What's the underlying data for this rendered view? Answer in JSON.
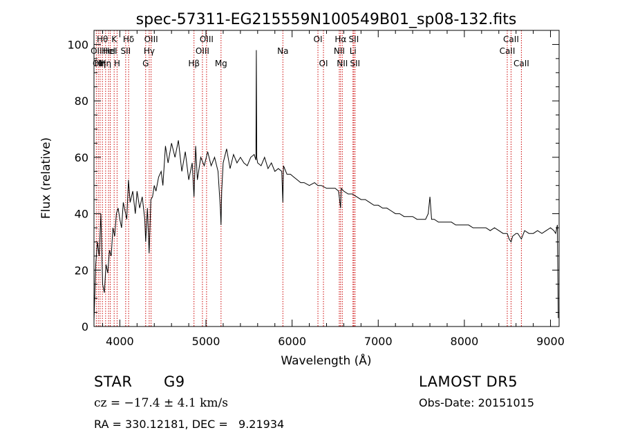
{
  "chart_data": {
    "type": "line",
    "title": "spec-57311-EG215559N100549B01_sp08-132.fits",
    "xlabel": "Wavelength (Å)",
    "ylabel": "Flux (relative)",
    "xlim": [
      3700,
      9100
    ],
    "ylim": [
      0,
      105
    ],
    "xticks": [
      {
        "v": 4000,
        "t": "4000"
      },
      {
        "v": 5000,
        "t": "5000"
      },
      {
        "v": 6000,
        "t": "6000"
      },
      {
        "v": 7000,
        "t": "7000"
      },
      {
        "v": 8000,
        "t": "8000"
      },
      {
        "v": 9000,
        "t": "9000"
      }
    ],
    "yticks": [
      {
        "v": 0,
        "t": "0"
      },
      {
        "v": 20,
        "t": "20"
      },
      {
        "v": 40,
        "t": "40"
      },
      {
        "v": 60,
        "t": "60"
      },
      {
        "v": 80,
        "t": "80"
      },
      {
        "v": 100,
        "t": "100"
      }
    ],
    "series": [
      {
        "color": "#000000",
        "x": [
          3700,
          3720,
          3740,
          3760,
          3780,
          3800,
          3820,
          3840,
          3860,
          3880,
          3900,
          3920,
          3940,
          3960,
          3980,
          4000,
          4020,
          4040,
          4060,
          4080,
          4100,
          4120,
          4150,
          4180,
          4200,
          4230,
          4260,
          4290,
          4300,
          4320,
          4340,
          4360,
          4380,
          4400,
          4420,
          4450,
          4480,
          4500,
          4530,
          4560,
          4600,
          4640,
          4680,
          4720,
          4760,
          4800,
          4840,
          4861,
          4880,
          4900,
          4940,
          4980,
          5020,
          5060,
          5100,
          5140,
          5167,
          5175,
          5183,
          5200,
          5240,
          5280,
          5320,
          5360,
          5400,
          5440,
          5480,
          5520,
          5560,
          5580,
          5585,
          5590,
          5600,
          5640,
          5680,
          5720,
          5760,
          5800,
          5840,
          5880,
          5893,
          5900,
          5940,
          5980,
          6020,
          6060,
          6100,
          6140,
          6200,
          6260,
          6300,
          6340,
          6400,
          6450,
          6500,
          6540,
          6563,
          6570,
          6600,
          6650,
          6700,
          6750,
          6800,
          6850,
          6900,
          6950,
          7000,
          7050,
          7100,
          7150,
          7200,
          7250,
          7300,
          7350,
          7400,
          7450,
          7500,
          7550,
          7580,
          7600,
          7620,
          7650,
          7700,
          7750,
          7800,
          7850,
          7900,
          7950,
          8000,
          8050,
          8100,
          8150,
          8200,
          8250,
          8300,
          8350,
          8400,
          8450,
          8498,
          8520,
          8542,
          8560,
          8600,
          8620,
          8662,
          8700,
          8750,
          8800,
          8850,
          8900,
          8950,
          9000,
          9040,
          9060,
          9080,
          9090
        ],
        "y": [
          2,
          22,
          30,
          25,
          40,
          15,
          12,
          22,
          19,
          27,
          25,
          35,
          32,
          40,
          42,
          38,
          35,
          44,
          41,
          38,
          52,
          44,
          48,
          40,
          48,
          42,
          46,
          38,
          30,
          42,
          26,
          45,
          46,
          50,
          48,
          53,
          55,
          50,
          64,
          58,
          65,
          60,
          66,
          55,
          62,
          52,
          58,
          46,
          64,
          52,
          60,
          57,
          62,
          57,
          60,
          55,
          42,
          36,
          48,
          58,
          63,
          56,
          61,
          58,
          60,
          58,
          57,
          60,
          61,
          59,
          98,
          60,
          58,
          57,
          60,
          56,
          58,
          55,
          56,
          55,
          44,
          57,
          54,
          54,
          53,
          52,
          51,
          51,
          50,
          51,
          50,
          50,
          49,
          49,
          49,
          48,
          42,
          49,
          48,
          47,
          47,
          46,
          45,
          45,
          44,
          43,
          43,
          42,
          42,
          41,
          40,
          40,
          39,
          39,
          39,
          38,
          38,
          38,
          40,
          46,
          38,
          38,
          37,
          37,
          37,
          37,
          36,
          36,
          36,
          36,
          35,
          35,
          35,
          35,
          34,
          35,
          34,
          33,
          33,
          31,
          30,
          32,
          33,
          33,
          31,
          34,
          33,
          33,
          34,
          33,
          34,
          35,
          34,
          33,
          36,
          3
        ]
      }
    ],
    "lines": [
      {
        "wl": 3727,
        "label": "OII",
        "row": 1
      },
      {
        "wl": 3750,
        "label": "OII",
        "row": 2
      },
      {
        "wl": 3771,
        "label": "Hη",
        "row": 2
      },
      {
        "wl": 3798,
        "label": "Hθ",
        "row": 0
      },
      {
        "wl": 3835,
        "label": "Hη",
        "row": 2
      },
      {
        "wl": 3869,
        "label": "HeI",
        "row": 1
      },
      {
        "wl": 3889,
        "label": "HeI",
        "row": 1
      },
      {
        "wl": 3934,
        "label": "K",
        "row": 0
      },
      {
        "wl": 3968,
        "label": "H",
        "row": 2
      },
      {
        "wl": 4068,
        "label": "SII",
        "row": 1
      },
      {
        "wl": 4102,
        "label": "Hδ",
        "row": 0
      },
      {
        "wl": 4300,
        "label": "G",
        "row": 2
      },
      {
        "wl": 4341,
        "label": "Hγ",
        "row": 1
      },
      {
        "wl": 4363,
        "label": "OIII",
        "row": 0
      },
      {
        "wl": 4861,
        "label": "Hβ",
        "row": 2
      },
      {
        "wl": 4959,
        "label": "OIII",
        "row": 1
      },
      {
        "wl": 5007,
        "label": "OIII",
        "row": 0
      },
      {
        "wl": 5175,
        "label": "Mg",
        "row": 2
      },
      {
        "wl": 5893,
        "label": "Na",
        "row": 1
      },
      {
        "wl": 6300,
        "label": "OI",
        "row": 0
      },
      {
        "wl": 6364,
        "label": "OI",
        "row": 2
      },
      {
        "wl": 6548,
        "label": "NII",
        "row": 1
      },
      {
        "wl": 6563,
        "label": "Hα",
        "row": 0
      },
      {
        "wl": 6583,
        "label": "NII",
        "row": 2
      },
      {
        "wl": 6707,
        "label": "Li",
        "row": 1
      },
      {
        "wl": 6716,
        "label": "SII",
        "row": 0
      },
      {
        "wl": 6731,
        "label": "SII",
        "row": 2
      },
      {
        "wl": 8498,
        "label": "CaII",
        "row": 1
      },
      {
        "wl": 8542,
        "label": "CaII",
        "row": 0
      },
      {
        "wl": 8662,
        "label": "CaII",
        "row": 2
      }
    ]
  },
  "info": {
    "object_type": "STAR",
    "subclass": "G9",
    "survey": "LAMOST DR5",
    "cz": "cz = −17.4 ± 4.1 km/s",
    "obs_date": "Obs-Date: 20151015",
    "coords": "RA = 330.12181, DEC =   9.21934"
  },
  "colors": {
    "spectrum": "#000000",
    "line_marker": "#cc0000",
    "axes": "#000000"
  }
}
